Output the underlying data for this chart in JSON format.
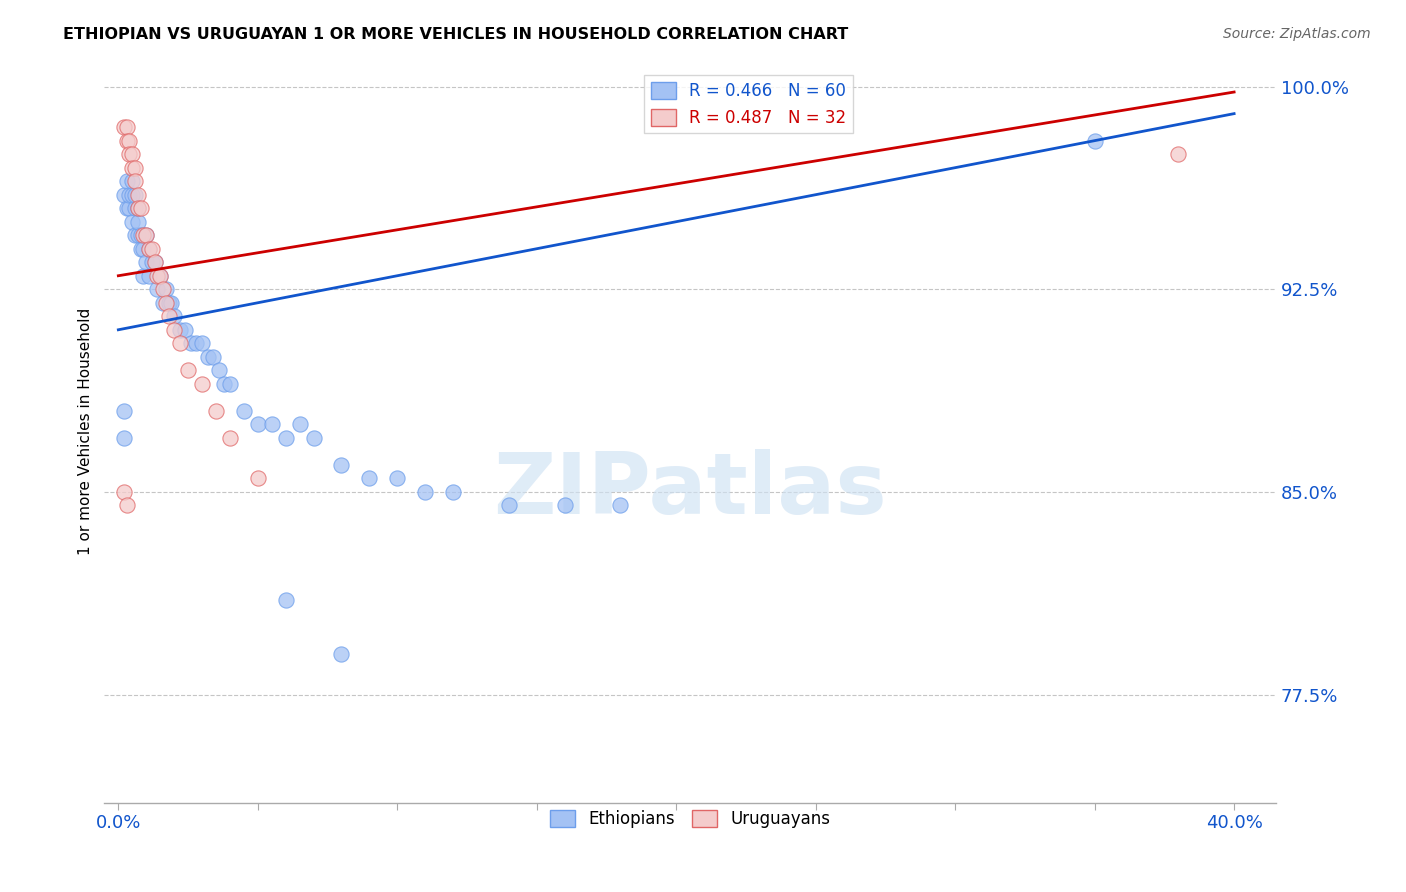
{
  "title": "ETHIOPIAN VS URUGUAYAN 1 OR MORE VEHICLES IN HOUSEHOLD CORRELATION CHART",
  "source": "Source: ZipAtlas.com",
  "ylabel": "1 or more Vehicles in Household",
  "legend_blue": "R = 0.466   N = 60",
  "legend_pink": "R = 0.487   N = 32",
  "watermark": "ZIPatlas",
  "blue_color": "#a4c2f4",
  "pink_color": "#f4cccc",
  "blue_scatter_edge": "#6d9eeb",
  "pink_scatter_edge": "#e06666",
  "blue_line_color": "#1155cc",
  "pink_line_color": "#cc0000",
  "background_color": "#ffffff",
  "grid_color": "#b7b7b7",
  "axis_label_color": "#1155cc",
  "blue_scatter": [
    [
      0.002,
      0.96
    ],
    [
      0.003,
      0.955
    ],
    [
      0.003,
      0.965
    ],
    [
      0.004,
      0.955
    ],
    [
      0.004,
      0.96
    ],
    [
      0.005,
      0.95
    ],
    [
      0.005,
      0.96
    ],
    [
      0.005,
      0.965
    ],
    [
      0.006,
      0.945
    ],
    [
      0.006,
      0.955
    ],
    [
      0.006,
      0.96
    ],
    [
      0.007,
      0.945
    ],
    [
      0.007,
      0.95
    ],
    [
      0.007,
      0.955
    ],
    [
      0.008,
      0.94
    ],
    [
      0.008,
      0.945
    ],
    [
      0.009,
      0.93
    ],
    [
      0.009,
      0.94
    ],
    [
      0.01,
      0.935
    ],
    [
      0.01,
      0.945
    ],
    [
      0.011,
      0.93
    ],
    [
      0.011,
      0.94
    ],
    [
      0.012,
      0.935
    ],
    [
      0.013,
      0.935
    ],
    [
      0.014,
      0.925
    ],
    [
      0.015,
      0.93
    ],
    [
      0.016,
      0.92
    ],
    [
      0.017,
      0.925
    ],
    [
      0.018,
      0.92
    ],
    [
      0.019,
      0.92
    ],
    [
      0.02,
      0.915
    ],
    [
      0.022,
      0.91
    ],
    [
      0.024,
      0.91
    ],
    [
      0.026,
      0.905
    ],
    [
      0.028,
      0.905
    ],
    [
      0.03,
      0.905
    ],
    [
      0.032,
      0.9
    ],
    [
      0.034,
      0.9
    ],
    [
      0.036,
      0.895
    ],
    [
      0.038,
      0.89
    ],
    [
      0.04,
      0.89
    ],
    [
      0.045,
      0.88
    ],
    [
      0.05,
      0.875
    ],
    [
      0.055,
      0.875
    ],
    [
      0.06,
      0.87
    ],
    [
      0.065,
      0.875
    ],
    [
      0.07,
      0.87
    ],
    [
      0.08,
      0.86
    ],
    [
      0.09,
      0.855
    ],
    [
      0.1,
      0.855
    ],
    [
      0.11,
      0.85
    ],
    [
      0.12,
      0.85
    ],
    [
      0.14,
      0.845
    ],
    [
      0.16,
      0.845
    ],
    [
      0.18,
      0.845
    ],
    [
      0.002,
      0.87
    ],
    [
      0.002,
      0.88
    ],
    [
      0.06,
      0.81
    ],
    [
      0.08,
      0.79
    ],
    [
      0.35,
      0.98
    ]
  ],
  "pink_scatter": [
    [
      0.002,
      0.985
    ],
    [
      0.003,
      0.985
    ],
    [
      0.003,
      0.98
    ],
    [
      0.004,
      0.98
    ],
    [
      0.004,
      0.975
    ],
    [
      0.005,
      0.975
    ],
    [
      0.005,
      0.97
    ],
    [
      0.006,
      0.97
    ],
    [
      0.006,
      0.965
    ],
    [
      0.007,
      0.96
    ],
    [
      0.007,
      0.955
    ],
    [
      0.008,
      0.955
    ],
    [
      0.009,
      0.945
    ],
    [
      0.01,
      0.945
    ],
    [
      0.011,
      0.94
    ],
    [
      0.012,
      0.94
    ],
    [
      0.013,
      0.935
    ],
    [
      0.014,
      0.93
    ],
    [
      0.015,
      0.93
    ],
    [
      0.016,
      0.925
    ],
    [
      0.017,
      0.92
    ],
    [
      0.018,
      0.915
    ],
    [
      0.02,
      0.91
    ],
    [
      0.022,
      0.905
    ],
    [
      0.025,
      0.895
    ],
    [
      0.03,
      0.89
    ],
    [
      0.002,
      0.85
    ],
    [
      0.003,
      0.845
    ],
    [
      0.035,
      0.88
    ],
    [
      0.04,
      0.87
    ],
    [
      0.05,
      0.855
    ],
    [
      0.38,
      0.975
    ]
  ],
  "blue_line_x": [
    0.0,
    0.4
  ],
  "blue_line_y": [
    0.91,
    0.99
  ],
  "pink_line_x": [
    0.0,
    0.4
  ],
  "pink_line_y": [
    0.93,
    0.998
  ],
  "xlim": [
    -0.005,
    0.415
  ],
  "ylim": [
    0.735,
    1.01
  ],
  "yticks": [
    0.775,
    0.85,
    0.925,
    1.0
  ],
  "ytick_labels": [
    "77.5%",
    "85.0%",
    "92.5%",
    "100.0%"
  ],
  "xtick_positions": [
    0.0,
    0.05,
    0.1,
    0.15,
    0.2,
    0.25,
    0.3,
    0.35,
    0.4
  ],
  "xtick_label_left": "0.0%",
  "xtick_label_right": "40.0%"
}
